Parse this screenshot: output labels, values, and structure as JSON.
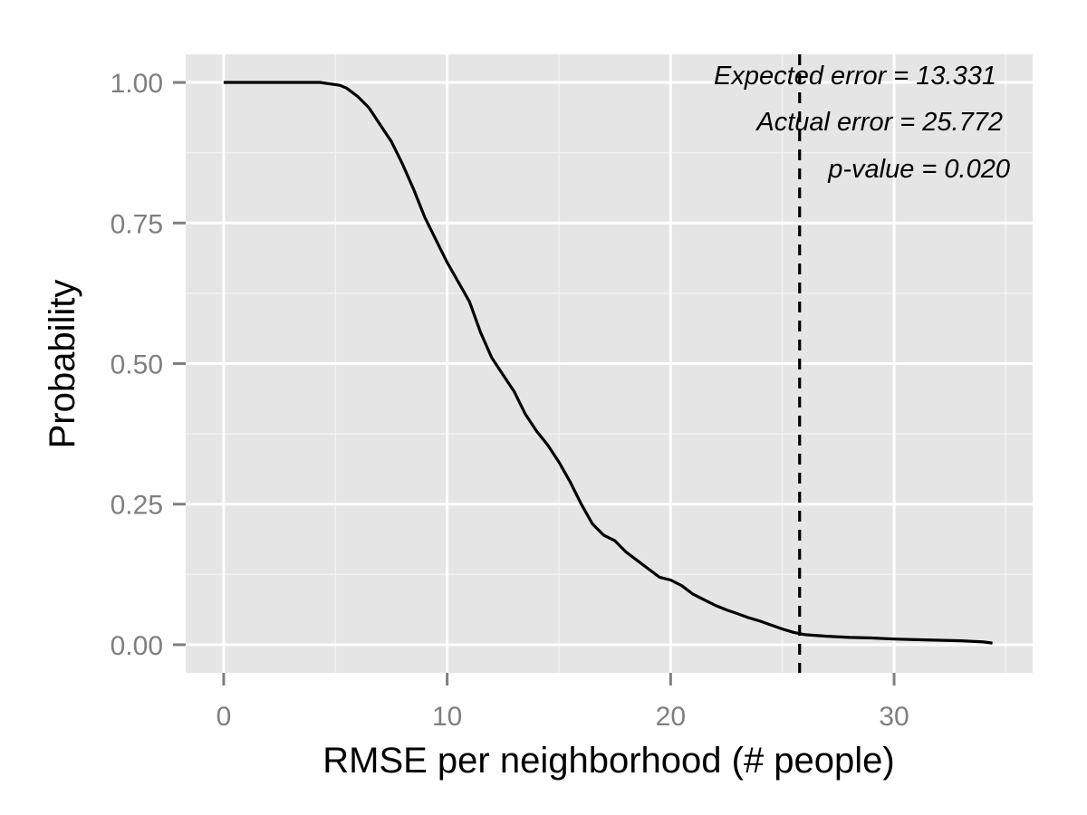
{
  "chart_data": {
    "type": "line",
    "title": "",
    "xlabel": "RMSE per neighborhood (# people)",
    "ylabel": "Probability",
    "xlim": [
      -1.7,
      36.2
    ],
    "ylim": [
      -0.05,
      1.05
    ],
    "x_ticks": [
      {
        "value": 0,
        "label": "0"
      },
      {
        "value": 10,
        "label": "10"
      },
      {
        "value": 20,
        "label": "20"
      },
      {
        "value": 30,
        "label": "30"
      }
    ],
    "y_ticks": [
      {
        "value": 0,
        "label": "0.00"
      },
      {
        "value": 0.25,
        "label": "0.25"
      },
      {
        "value": 0.5,
        "label": "0.50"
      },
      {
        "value": 0.75,
        "label": "0.75"
      },
      {
        "value": 1,
        "label": "1.00"
      }
    ],
    "grid": true,
    "background": "#e5e5e5",
    "line_color": "#000000",
    "series": [
      {
        "x": [
          0,
          4.3,
          5.2,
          5.5,
          6.0,
          6.5,
          7.0,
          7.5,
          8.0,
          8.5,
          9.0,
          9.5,
          10.0,
          10.5,
          11.0,
          11.5,
          12.0,
          12.5,
          13.0,
          13.5,
          14.0,
          14.5,
          15.0,
          15.5,
          16.0,
          16.5,
          17.0,
          17.5,
          18.0,
          18.5,
          19.0,
          19.5,
          20.0,
          20.5,
          21.0,
          21.5,
          22.0,
          22.5,
          23.0,
          23.5,
          24.0,
          24.5,
          25.0,
          25.5,
          26.0,
          27.0,
          28.0,
          29.0,
          30.0,
          31.0,
          32.0,
          33.0,
          34.0,
          34.4
        ],
        "y": [
          1.0,
          1.0,
          0.995,
          0.99,
          0.975,
          0.955,
          0.925,
          0.895,
          0.855,
          0.81,
          0.76,
          0.72,
          0.68,
          0.645,
          0.61,
          0.555,
          0.51,
          0.48,
          0.45,
          0.41,
          0.38,
          0.355,
          0.325,
          0.29,
          0.25,
          0.215,
          0.195,
          0.185,
          0.165,
          0.15,
          0.135,
          0.12,
          0.115,
          0.105,
          0.09,
          0.08,
          0.07,
          0.062,
          0.055,
          0.048,
          0.042,
          0.035,
          0.028,
          0.022,
          0.018,
          0.015,
          0.013,
          0.012,
          0.01,
          0.009,
          0.008,
          0.007,
          0.005,
          0.003
        ]
      }
    ],
    "vline": {
      "x": 25.772,
      "style": "dashed",
      "color": "#000000"
    },
    "annotations": [
      {
        "text": "Expected error = 13.331"
      },
      {
        "text": "Actual error = 25.772"
      },
      {
        "text": "p-value = 0.020"
      }
    ]
  }
}
